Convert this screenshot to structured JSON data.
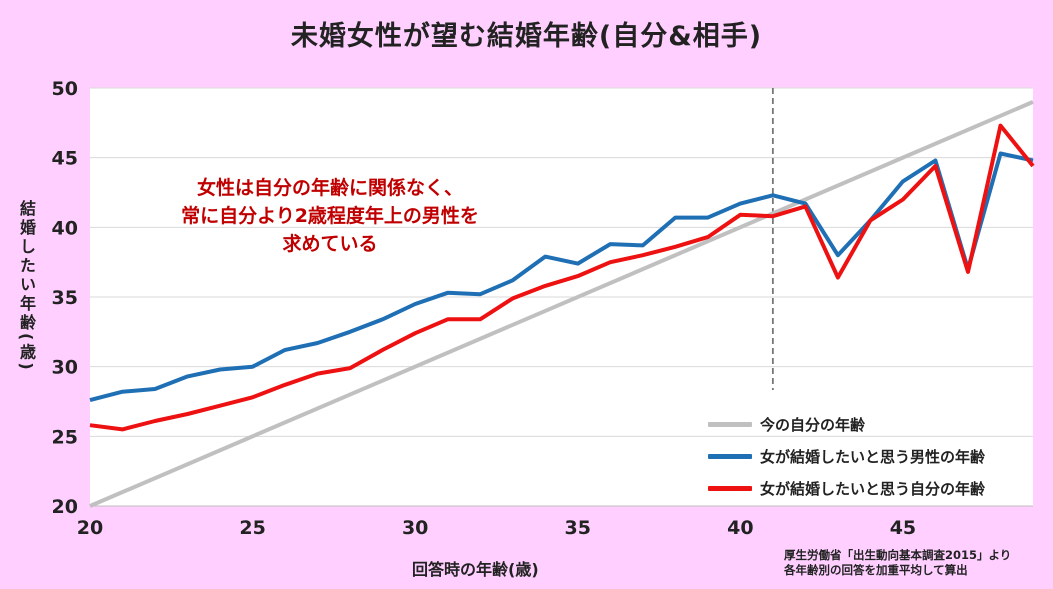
{
  "chart_data": {
    "type": "line",
    "title": "未婚女性が望む結婚年齢(自分&相手)",
    "xlabel": "回答時の年齢(歳)",
    "ylabel": "結婚したい年齢(歳)",
    "xlim": [
      20,
      49
    ],
    "ylim": [
      20,
      50
    ],
    "x_ticks": [
      20,
      25,
      30,
      35,
      40,
      45
    ],
    "y_ticks": [
      20,
      25,
      30,
      35,
      40,
      45,
      50
    ],
    "grid": true,
    "legend_position": "bottom-right",
    "reference_line_x": 41,
    "series": [
      {
        "name": "今の自分の年齢",
        "color": "#c0c0c0",
        "x": [
          20,
          49
        ],
        "y": [
          20,
          49
        ]
      },
      {
        "name": "女が結婚したいと思う男性の年齢",
        "color": "#1f6fb5",
        "x": [
          20,
          21,
          22,
          23,
          24,
          25,
          26,
          27,
          28,
          29,
          30,
          31,
          32,
          33,
          34,
          35,
          36,
          37,
          38,
          39,
          40,
          41,
          42,
          43,
          44,
          45,
          46,
          47,
          48,
          49
        ],
        "y": [
          27.6,
          28.2,
          28.4,
          29.3,
          29.8,
          30.0,
          31.2,
          31.7,
          32.5,
          33.4,
          34.5,
          35.3,
          35.2,
          36.2,
          37.9,
          37.4,
          38.8,
          38.7,
          40.7,
          40.7,
          41.7,
          42.3,
          41.7,
          38.0,
          40.5,
          43.3,
          44.8,
          37.0,
          45.3,
          44.8
        ]
      },
      {
        "name": "女が結婚したいと思う自分の年齢",
        "color": "#ee1111",
        "x": [
          20,
          21,
          22,
          23,
          24,
          25,
          26,
          27,
          28,
          29,
          30,
          31,
          32,
          33,
          34,
          35,
          36,
          37,
          38,
          39,
          40,
          41,
          42,
          43,
          44,
          45,
          46,
          47,
          48,
          49
        ],
        "y": [
          25.8,
          25.5,
          26.1,
          26.6,
          27.2,
          27.8,
          28.7,
          29.5,
          29.9,
          31.2,
          32.4,
          33.4,
          33.4,
          34.9,
          35.8,
          36.5,
          37.5,
          38.0,
          38.6,
          39.3,
          40.9,
          40.8,
          41.5,
          36.4,
          40.5,
          42.0,
          44.4,
          36.8,
          47.3,
          44.4
        ]
      }
    ]
  },
  "annotation": {
    "line1": "女性は自分の年齢に関係なく、",
    "line2": "常に自分より2歳程度年上の男性を",
    "line3": "求めている"
  },
  "source": {
    "line1": "厚生労働省「出生動向基本調査2015」より",
    "line2": "各年齢別の回答を加重平均して算出"
  }
}
